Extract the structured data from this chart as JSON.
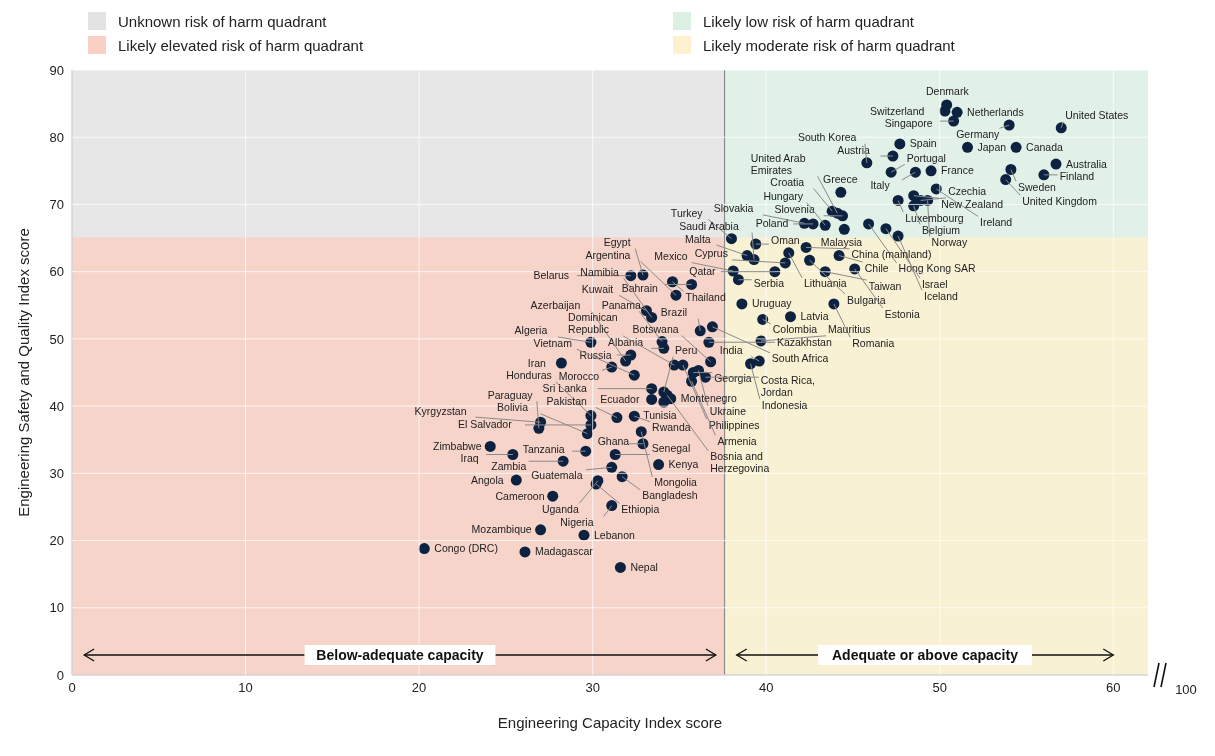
{
  "chart_data": {
    "type": "scatter",
    "xlabel": "Engineering Capacity Index score",
    "ylabel": "Engineering Safety and Quality Index score",
    "xlim": [
      0,
      62
    ],
    "xticks": [
      0,
      10,
      20,
      30,
      40,
      50,
      60
    ],
    "ylim": [
      0,
      90
    ],
    "yticks": [
      0,
      10,
      20,
      30,
      40,
      50,
      60,
      70,
      80,
      90
    ],
    "grid": true,
    "legend": "top",
    "ref_lines": [
      {
        "axis": "x",
        "value": 37.6,
        "color": "#8c8c8c"
      }
    ],
    "annotations": [
      "Below-adequate capacity",
      "Adequate or above capacity",
      "100"
    ],
    "series": [
      {
        "name": "Unknown risk of harm quadrant",
        "type": "area",
        "color": "#e3e3e3",
        "x": [
          0,
          37.6
        ],
        "values": [
          90,
          90
        ]
      },
      {
        "name": "Likely elevated risk of harm quadrant",
        "type": "area",
        "color": "#f9d0c3",
        "x": [
          0,
          37.6
        ],
        "values": [
          65.1,
          65.1
        ]
      },
      {
        "name": "Likely low risk of harm quadrant",
        "type": "area",
        "color": "#dcefe3",
        "x": [
          37.6,
          62
        ],
        "values": [
          90,
          90
        ]
      },
      {
        "name": "Likely moderate risk of harm quadrant",
        "type": "area",
        "color": "#fdf1cf",
        "x": [
          37.6,
          62
        ],
        "values": [
          65.1,
          65.1
        ]
      },
      {
        "color": "#0d2240",
        "marker": "circle",
        "x": [
          50.4,
          50.3,
          51.0,
          50.8,
          54.0,
          57.0,
          47.7,
          51.6,
          54.4,
          47.3,
          45.8,
          56.7,
          47.2,
          48.6,
          49.5,
          54.1,
          56.0,
          53.8,
          44.3,
          49.8,
          48.5,
          48.9,
          49.3,
          47.6,
          48.5,
          43.8,
          44.1,
          44.4,
          42.2,
          42.7,
          43.4,
          45.9,
          44.5,
          46.9,
          47.6,
          38.0,
          39.4,
          42.3,
          41.3,
          44.2,
          42.5,
          41.1,
          38.9,
          39.3,
          40.5,
          38.1,
          38.4,
          45.1,
          43.4,
          38.6,
          43.9,
          41.4,
          39.8,
          39.7,
          39.6,
          39.1,
          34.6,
          32.9,
          32.2,
          35.7,
          34.8,
          33.1,
          33.4,
          36.9,
          36.2,
          36.7,
          29.9,
          34.0,
          34.1,
          32.2,
          31.9,
          28.2,
          31.1,
          36.8,
          34.7,
          35.2,
          35.8,
          36.1,
          36.5,
          35.7,
          32.4,
          33.4,
          34.1,
          34.3,
          34.5,
          33.4,
          34.1,
          29.9,
          31.4,
          32.4,
          27.0,
          26.9,
          29.9,
          29.7,
          32.8,
          32.9,
          24.1,
          29.6,
          25.4,
          31.3,
          28.3,
          33.8,
          31.1,
          31.7,
          25.6,
          30.3,
          30.2,
          27.7,
          31.1,
          27.0,
          29.5,
          20.3,
          26.1,
          31.6
        ],
        "values": [
          84.8,
          83.9,
          83.7,
          82.4,
          81.8,
          81.4,
          79.0,
          78.5,
          78.5,
          77.2,
          76.2,
          76.0,
          74.8,
          74.8,
          75.0,
          75.2,
          74.4,
          73.7,
          71.8,
          72.3,
          71.3,
          70.6,
          70.6,
          70.6,
          69.8,
          69.0,
          68.7,
          68.3,
          67.2,
          67.1,
          66.9,
          67.1,
          66.3,
          66.4,
          65.3,
          64.9,
          64.1,
          63.6,
          62.8,
          62.4,
          61.7,
          61.3,
          62.4,
          61.8,
          60.0,
          60.1,
          58.8,
          60.4,
          60.0,
          55.2,
          55.2,
          53.3,
          52.9,
          49.7,
          46.7,
          46.3,
          58.5,
          59.5,
          59.4,
          58.1,
          56.5,
          54.2,
          53.2,
          51.8,
          51.2,
          49.5,
          49.5,
          49.6,
          48.6,
          47.6,
          46.7,
          46.4,
          45.8,
          46.6,
          46.1,
          46.1,
          45.0,
          45.3,
          44.3,
          43.7,
          44.6,
          42.6,
          42.1,
          41.6,
          41.1,
          41.0,
          40.6,
          38.6,
          38.3,
          38.5,
          37.6,
          36.7,
          37.2,
          35.9,
          36.2,
          34.4,
          34.0,
          33.3,
          32.8,
          32.8,
          31.8,
          31.3,
          30.9,
          29.5,
          29.0,
          28.9,
          28.4,
          26.6,
          25.2,
          21.6,
          20.8,
          18.8,
          18.3,
          16.0
        ],
        "value_labels": [
          "Denmark",
          "Switzerland",
          "Netherlands",
          "Singapore",
          "Germany",
          "United States",
          "Spain",
          "Japan",
          "Canada",
          "Austria",
          "South Korea",
          "Australia",
          "Portugal",
          "Italy",
          "France",
          "Sweden",
          "Finland",
          "United Kingdom",
          "Greece",
          "Ireland",
          "New Zealand",
          "Czechia",
          "Norway",
          "Luxembourg",
          "Belgium",
          "Croatia",
          "United Arab Emirates",
          "Slovenia",
          "Slovakia",
          "Poland",
          "Hungary",
          "Hong Kong SAR",
          "Malaysia",
          "Israel",
          "Iceland",
          "Turkey",
          "Oman",
          "China (mainland)",
          "Lithuania",
          "Chile",
          "Bulgaria",
          "Cyprus",
          "Malta",
          "Saudi Arabia",
          "Qatar",
          "Mexico",
          "Serbia",
          "Estonia",
          "Taiwan",
          "Uruguay",
          "Romania",
          "Latvia",
          "Colombia",
          "Mauritius",
          "India",
          "Indonesia",
          "Thailand",
          "Egypt",
          "Belarus",
          "Bahrain",
          "Argentina",
          "Kuwait",
          "Namibia",
          "South Africa",
          "Brazil",
          "Kazakhstan",
          "Algeria",
          "Panama",
          "Albania",
          "Russia",
          "Azerbaijan",
          "Iran",
          "Morocco",
          "Botswana",
          "Dominican Republic",
          "Philippines",
          "Georgia",
          "Ukraine",
          "Costa Rica, Jordan",
          "Armenia",
          "Vietnam",
          "Sri Lanka",
          "Peru",
          "Bosnia and Herzegovina",
          "Montenegro",
          "Ecuador",
          "Tunisia",
          "Honduras",
          "Pakistan",
          "Rwanda",
          "Kyrgyzstan",
          "Paraguay",
          "El Salvador",
          "Bolivia",
          "Mongolia",
          "Ghana",
          "Zimbabwe",
          "Tanzania",
          "Iraq",
          "Senegal",
          "Zambia",
          "Kenya",
          "Guatemala",
          "Bangladesh",
          "Angola",
          "Uganda",
          "Ethiopia",
          "Cameroon",
          "Nigeria",
          "Mozambique",
          "Lebanon",
          "Congo (DRC)",
          "Madagascar",
          "Nepal"
        ]
      }
    ]
  }
}
